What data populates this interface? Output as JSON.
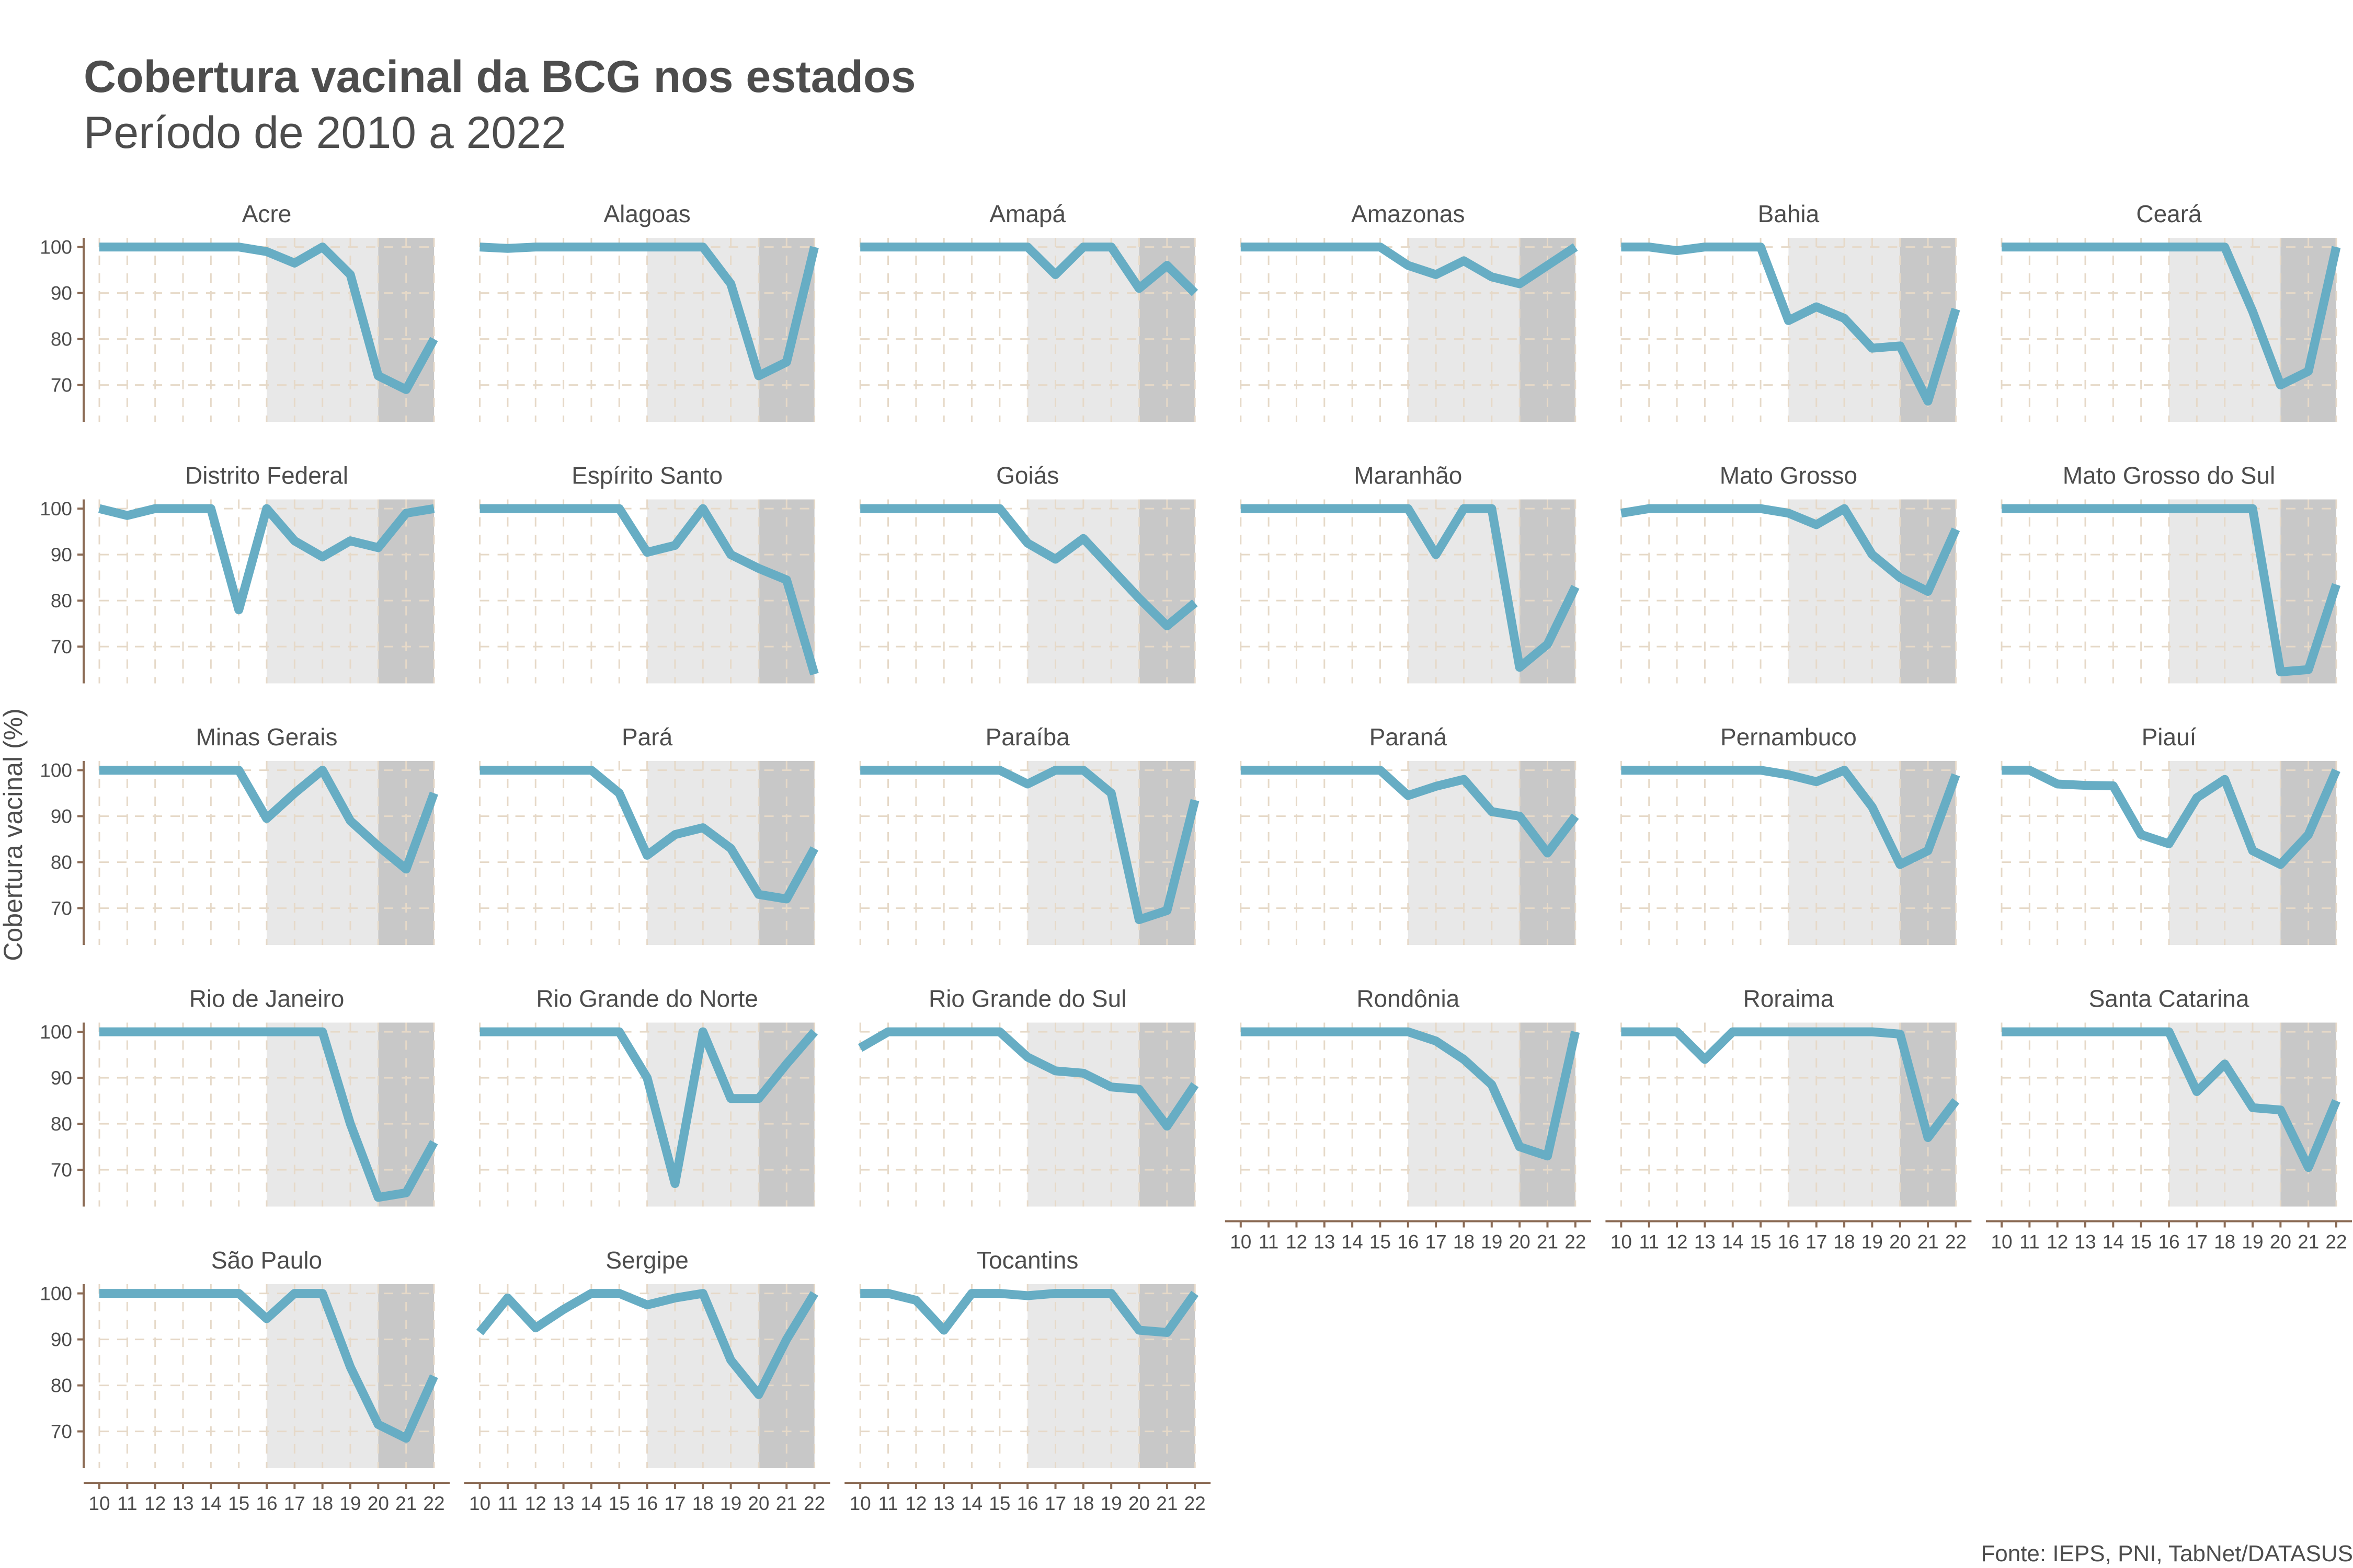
{
  "title": "Cobertura vacinal da BCG nos estados",
  "subtitle": "Período de 2010 a 2022",
  "ylabel": "Cobertura vacinal (%)",
  "caption": "Fonte: IEPS, PNI, TabNet/DATASUS",
  "colors": {
    "line": "#67adc4",
    "pandemic_band": "#e8e8e8",
    "peak_band": "#c8c8c8",
    "axis": "#8b6b55",
    "grid": "#e6d9c8",
    "text": "#4d4d4d"
  },
  "chart_data": {
    "type": "line",
    "layout": "facet-grid",
    "title": "Cobertura vacinal da BCG nos estados",
    "subtitle": "Período de 2010 a 2022",
    "ylabel": "Cobertura vacinal (%)",
    "x": [
      10,
      11,
      12,
      13,
      14,
      15,
      16,
      17,
      18,
      19,
      20,
      21,
      22
    ],
    "x_ticks": [
      "10",
      "11",
      "12",
      "13",
      "14",
      "15",
      "16",
      "17",
      "18",
      "19",
      "20",
      "21",
      "22"
    ],
    "y_ticks": [
      70,
      80,
      90,
      100
    ],
    "ylim": [
      62,
      102
    ],
    "xlim": [
      10,
      22
    ],
    "shaded_regions": [
      {
        "from": 16,
        "to": 20,
        "shade": "light"
      },
      {
        "from": 20,
        "to": 22,
        "shade": "dark"
      }
    ],
    "grid": true,
    "series": [
      {
        "name": "Acre",
        "values": [
          100,
          100,
          100,
          100,
          100,
          100,
          99,
          96.5,
          100,
          94,
          72,
          69,
          80
        ]
      },
      {
        "name": "Alagoas",
        "values": [
          100,
          99.7,
          100,
          100,
          100,
          100,
          100,
          100,
          100,
          92,
          72,
          75,
          100
        ]
      },
      {
        "name": "Amapá",
        "values": [
          100,
          100,
          100,
          100,
          100,
          100,
          100,
          94,
          100,
          100,
          91,
          96,
          90
        ]
      },
      {
        "name": "Amazonas",
        "values": [
          100,
          100,
          100,
          100,
          100,
          100,
          96,
          94,
          97,
          93.5,
          92,
          96,
          100
        ]
      },
      {
        "name": "Bahia",
        "values": [
          100,
          100,
          99.2,
          100,
          100,
          100,
          84,
          87,
          84.5,
          78,
          78.5,
          66.5,
          86.5
        ]
      },
      {
        "name": "Ceará",
        "values": [
          100,
          100,
          100,
          100,
          100,
          100,
          100,
          100,
          100,
          86,
          70,
          73,
          100
        ]
      },
      {
        "name": "Distrito Federal",
        "values": [
          100,
          98.5,
          100,
          100,
          100,
          78,
          100,
          93,
          89.5,
          93,
          91.5,
          99,
          100
        ]
      },
      {
        "name": "Espírito Santo",
        "values": [
          100,
          100,
          100,
          100,
          100,
          100,
          90.5,
          92,
          100,
          90,
          87,
          84.5,
          64
        ]
      },
      {
        "name": "Goiás",
        "values": [
          100,
          100,
          100,
          100,
          100,
          100,
          92.5,
          89,
          93.5,
          87,
          80.5,
          74.5,
          79.5
        ]
      },
      {
        "name": "Maranhão",
        "values": [
          100,
          100,
          100,
          100,
          100,
          100,
          100,
          90,
          100,
          100,
          65.5,
          70.5,
          83
        ]
      },
      {
        "name": "Mato Grosso",
        "values": [
          99,
          100,
          100,
          100,
          100,
          100,
          99,
          96.5,
          100,
          90,
          85,
          82,
          95.5
        ]
      },
      {
        "name": "Mato Grosso do Sul",
        "values": [
          100,
          100,
          100,
          100,
          100,
          100,
          100,
          100,
          100,
          100,
          64.5,
          65,
          83.5
        ]
      },
      {
        "name": "Minas Gerais",
        "values": [
          100,
          100,
          100,
          100,
          100,
          100,
          89.5,
          95,
          100,
          89,
          83.5,
          78.5,
          95
        ]
      },
      {
        "name": "Pará",
        "values": [
          100,
          100,
          100,
          100,
          100,
          95,
          81.5,
          86,
          87.5,
          83,
          73,
          72,
          83
        ]
      },
      {
        "name": "Paraíba",
        "values": [
          100,
          100,
          100,
          100,
          100,
          100,
          97,
          100,
          100,
          95,
          67.5,
          69.5,
          93.5
        ]
      },
      {
        "name": "Paraná",
        "values": [
          100,
          100,
          100,
          100,
          100,
          100,
          94.5,
          96.5,
          98,
          91,
          90,
          82,
          90
        ]
      },
      {
        "name": "Pernambuco",
        "values": [
          100,
          100,
          100,
          100,
          100,
          100,
          99,
          97.5,
          100,
          92,
          79.5,
          82.5,
          99
        ]
      },
      {
        "name": "Piauí",
        "values": [
          100,
          100,
          97,
          96.7,
          96.6,
          86,
          84,
          94,
          98,
          82.5,
          79.5,
          86,
          100
        ]
      },
      {
        "name": "Rio de Janeiro",
        "values": [
          100,
          100,
          100,
          100,
          100,
          100,
          100,
          100,
          100,
          80,
          64,
          65,
          76
        ]
      },
      {
        "name": "Rio Grande do Norte",
        "values": [
          100,
          100,
          100,
          100,
          100,
          100,
          90,
          67,
          100,
          85.5,
          85.5,
          93,
          100
        ]
      },
      {
        "name": "Rio Grande do Sul",
        "values": [
          96.5,
          100,
          100,
          100,
          100,
          100,
          94.5,
          91.5,
          91,
          88,
          87.5,
          79.5,
          88.5
        ]
      },
      {
        "name": "Rondônia",
        "values": [
          100,
          100,
          100,
          100,
          100,
          100,
          100,
          98,
          94,
          88.5,
          75,
          73,
          100
        ]
      },
      {
        "name": "Roraima",
        "values": [
          100,
          100,
          100,
          94,
          100,
          100,
          100,
          100,
          100,
          100,
          99.5,
          77,
          85
        ]
      },
      {
        "name": "Santa Catarina",
        "values": [
          100,
          100,
          100,
          100,
          100,
          100,
          100,
          87,
          93,
          83.5,
          83,
          70.5,
          85
        ]
      },
      {
        "name": "São Paulo",
        "values": [
          100,
          100,
          100,
          100,
          100,
          100,
          94.5,
          100,
          100,
          84,
          71.5,
          68.5,
          82
        ]
      },
      {
        "name": "Sergipe",
        "values": [
          91.5,
          99,
          92.5,
          96.5,
          100,
          100,
          97.5,
          99,
          100,
          85.5,
          78,
          90,
          100
        ]
      },
      {
        "name": "Tocantins",
        "values": [
          100,
          100,
          98.5,
          92,
          100,
          100,
          99.5,
          100,
          100,
          100,
          92,
          91.5,
          100
        ]
      }
    ]
  }
}
